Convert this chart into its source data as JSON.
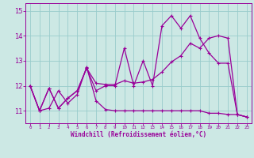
{
  "xlabel": "Windchill (Refroidissement éolien,°C)",
  "background_color": "#cce8e4",
  "grid_color": "#99cccc",
  "line_color": "#990099",
  "x_ticks": [
    0,
    1,
    2,
    3,
    4,
    5,
    6,
    7,
    8,
    9,
    10,
    11,
    12,
    13,
    14,
    15,
    16,
    17,
    18,
    19,
    20,
    21,
    22,
    23
  ],
  "ylim": [
    10.5,
    15.3
  ],
  "xlim": [
    -0.5,
    23.5
  ],
  "yticks": [
    11,
    12,
    13,
    14,
    15
  ],
  "series1": {
    "x": [
      0,
      1,
      2,
      3,
      4,
      5,
      6,
      7,
      8,
      9,
      10,
      11,
      12,
      13,
      14,
      15,
      16,
      17,
      18,
      19,
      20,
      21,
      22,
      23
    ],
    "y": [
      12.0,
      11.0,
      11.1,
      11.8,
      11.3,
      11.65,
      12.75,
      11.4,
      11.05,
      11.0,
      11.0,
      11.0,
      11.0,
      11.0,
      11.0,
      11.0,
      11.0,
      11.0,
      11.0,
      10.9,
      10.9,
      10.85,
      10.85,
      10.75
    ]
  },
  "series2": {
    "x": [
      0,
      1,
      2,
      3,
      4,
      5,
      6,
      7,
      8,
      9,
      10,
      11,
      12,
      13,
      14,
      15,
      16,
      17,
      18,
      19,
      20,
      21,
      22,
      23
    ],
    "y": [
      12.0,
      11.0,
      11.9,
      11.1,
      11.5,
      11.8,
      12.7,
      11.8,
      12.0,
      12.0,
      13.5,
      12.0,
      13.0,
      12.0,
      14.4,
      14.8,
      14.3,
      14.8,
      13.9,
      13.3,
      12.9,
      12.9,
      10.85,
      10.75
    ]
  },
  "series3": {
    "x": [
      0,
      1,
      2,
      3,
      4,
      5,
      6,
      7,
      8,
      9,
      10,
      11,
      12,
      13,
      14,
      15,
      16,
      17,
      18,
      19,
      20,
      21,
      22,
      23
    ],
    "y": [
      12.0,
      11.0,
      11.9,
      11.1,
      11.5,
      11.8,
      12.7,
      12.1,
      12.05,
      12.05,
      12.2,
      12.1,
      12.15,
      12.25,
      12.55,
      12.95,
      13.2,
      13.7,
      13.5,
      13.9,
      14.0,
      13.9,
      10.85,
      10.75
    ]
  },
  "xlabel_fontsize": 5.5,
  "ylabel_fontsize": 6,
  "xtick_fontsize": 4.2,
  "ytick_fontsize": 5.5
}
